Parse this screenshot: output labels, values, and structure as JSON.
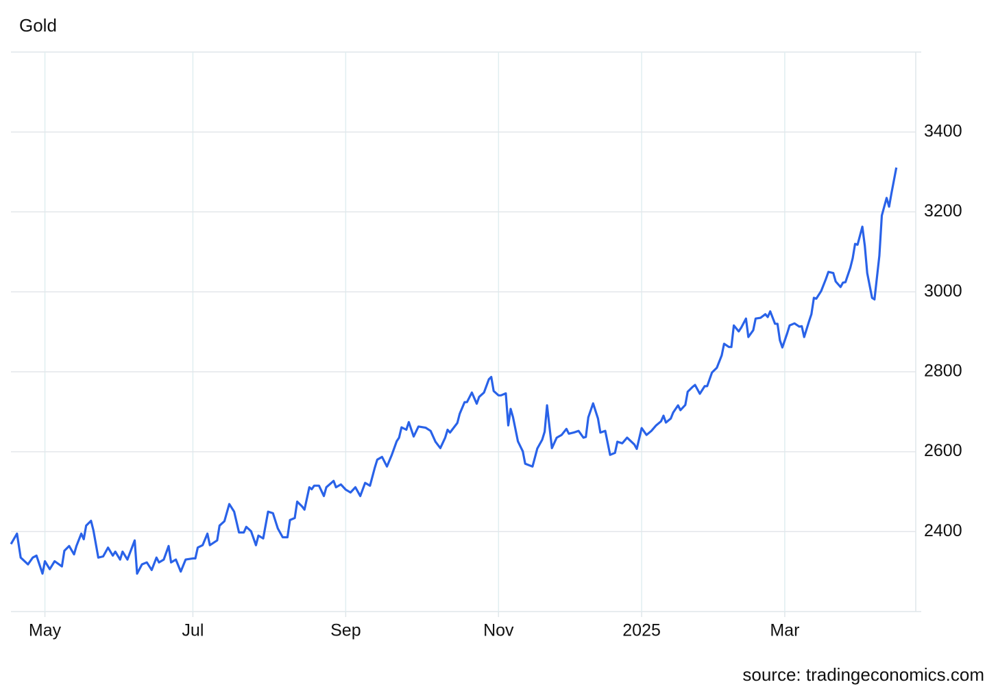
{
  "chart_data": {
    "type": "line",
    "title": "Gold",
    "source": "source: tradingeconomics.com",
    "color": "#2962e8",
    "grid": true,
    "x": [
      0,
      2.5,
      4,
      7,
      9,
      10.5,
      13,
      14,
      16,
      18,
      21,
      22,
      24,
      26,
      27,
      29,
      30,
      31,
      33,
      34,
      36,
      38,
      40,
      42,
      43,
      45,
      46,
      48,
      51,
      52,
      54,
      56,
      58,
      60,
      61,
      63,
      65,
      66,
      68,
      70,
      72,
      75,
      76,
      77,
      79,
      81,
      82,
      85,
      86,
      88,
      90,
      92,
      94,
      96,
      97,
      99,
      101,
      102,
      104,
      106,
      108,
      110,
      112,
      114,
      115,
      117,
      118,
      120,
      121,
      123,
      124,
      125,
      127,
      129,
      130,
      133,
      134,
      136,
      138,
      140,
      142,
      144,
      146,
      148,
      150,
      151,
      153,
      155,
      157,
      159,
      160,
      161,
      163,
      164,
      166,
      168,
      171,
      173,
      175,
      177,
      179,
      180,
      181,
      184,
      185,
      187,
      188,
      190,
      192,
      193,
      195,
      197,
      198,
      199,
      201,
      202,
      204,
      205,
      206,
      207,
      209,
      211,
      212,
      215,
      217,
      219,
      220,
      221,
      223,
      225,
      227,
      229,
      230,
      232,
      234,
      236,
      237,
      238,
      240,
      242,
      243,
      245,
      247,
      249,
      250,
      252,
      254,
      257,
      258,
      260,
      262,
      264,
      266,
      268,
      269,
      270,
      272,
      273,
      275,
      276,
      278,
      279,
      281,
      282,
      284,
      286,
      287,
      289,
      291,
      293,
      294,
      296,
      297,
      298,
      300,
      301,
      303,
      304,
      306,
      307,
      309,
      311,
      312,
      313,
      315,
      316,
      317,
      318,
      320,
      321,
      323,
      325,
      326,
      327,
      329,
      330,
      331,
      332,
      334,
      336,
      337,
      339,
      340,
      342,
      343,
      344,
      346,
      347,
      348,
      349,
      351,
      352,
      353,
      355,
      356,
      358,
      359,
      361,
      362,
      363,
      365
    ],
    "values": [
      2369,
      2395,
      2335,
      2318,
      2335,
      2340,
      2295,
      2326,
      2306,
      2326,
      2313,
      2352,
      2364,
      2343,
      2364,
      2395,
      2381,
      2415,
      2427,
      2403,
      2335,
      2338,
      2360,
      2340,
      2350,
      2330,
      2350,
      2330,
      2378,
      2295,
      2318,
      2323,
      2304,
      2335,
      2323,
      2330,
      2364,
      2323,
      2330,
      2300,
      2330,
      2333,
      2333,
      2360,
      2366,
      2395,
      2366,
      2378,
      2415,
      2426,
      2469,
      2450,
      2398,
      2398,
      2412,
      2401,
      2366,
      2390,
      2383,
      2450,
      2446,
      2408,
      2386,
      2386,
      2429,
      2434,
      2475,
      2463,
      2455,
      2511,
      2506,
      2515,
      2515,
      2489,
      2511,
      2527,
      2511,
      2518,
      2505,
      2498,
      2511,
      2489,
      2522,
      2515,
      2560,
      2580,
      2587,
      2563,
      2592,
      2626,
      2635,
      2661,
      2655,
      2674,
      2638,
      2663,
      2660,
      2652,
      2625,
      2609,
      2635,
      2655,
      2648,
      2672,
      2695,
      2724,
      2724,
      2748,
      2720,
      2737,
      2748,
      2781,
      2787,
      2752,
      2741,
      2741,
      2746,
      2666,
      2707,
      2686,
      2626,
      2601,
      2570,
      2563,
      2608,
      2630,
      2650,
      2716,
      2609,
      2635,
      2642,
      2657,
      2645,
      2648,
      2652,
      2635,
      2637,
      2686,
      2721,
      2683,
      2648,
      2652,
      2592,
      2597,
      2625,
      2621,
      2635,
      2618,
      2607,
      2659,
      2642,
      2652,
      2666,
      2676,
      2690,
      2673,
      2683,
      2698,
      2716,
      2704,
      2717,
      2750,
      2762,
      2767,
      2745,
      2764,
      2764,
      2798,
      2810,
      2841,
      2870,
      2862,
      2862,
      2916,
      2901,
      2910,
      2933,
      2887,
      2904,
      2933,
      2935,
      2944,
      2937,
      2951,
      2920,
      2920,
      2879,
      2861,
      2896,
      2916,
      2921,
      2913,
      2914,
      2887,
      2926,
      2944,
      2985,
      2983,
      3002,
      3033,
      3050,
      3047,
      3026,
      3012,
      3023,
      3024,
      3060,
      3084,
      3120,
      3118,
      3163,
      3115,
      3047,
      2985,
      2981,
      3090,
      3191,
      3235,
      3213,
      3247,
      3311
    ],
    "xlim": [
      0,
      373
    ],
    "xticks": [
      {
        "value": 14,
        "label": "May"
      },
      {
        "value": 75,
        "label": "Jul"
      },
      {
        "value": 138,
        "label": "Sep"
      },
      {
        "value": 201,
        "label": "Nov"
      },
      {
        "value": 260,
        "label": "2025"
      },
      {
        "value": 319,
        "label": "Mar"
      }
    ],
    "ylim": [
      2200,
      3600
    ],
    "yticks": [
      2400,
      2600,
      2800,
      3000,
      3200,
      3400
    ]
  }
}
